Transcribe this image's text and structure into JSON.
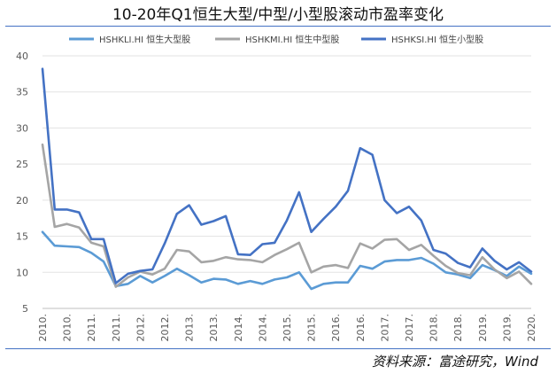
{
  "title": "10-20年Q1恒生大型/中型/小型股滚动市盈率变化",
  "source": "资料来源：富途研究，Wind",
  "chart_data": {
    "type": "line",
    "title": "10-20年Q1恒生大型/中型/小型股滚动市盈率变化",
    "ylim": [
      5,
      40
    ],
    "yticks": [
      5,
      10,
      15,
      20,
      25,
      30,
      35,
      40
    ],
    "grid": true,
    "legend_position": "top",
    "x_tick_labels": [
      "2010.",
      "2010.",
      "2011.",
      "2011.",
      "2012.",
      "2012.",
      "2013.",
      "2013.",
      "2014.",
      "2014.",
      "2015.",
      "2015.",
      "2016.",
      "2016.",
      "2017.",
      "2017.",
      "2018.",
      "2018.",
      "2019.",
      "2019.",
      "2020."
    ],
    "x": [
      "2010Q1",
      "2010Q2",
      "2010Q3",
      "2010Q4",
      "2011Q1",
      "2011Q2",
      "2011Q3",
      "2011Q4",
      "2012Q1",
      "2012Q2",
      "2012Q3",
      "2012Q4",
      "2013Q1",
      "2013Q2",
      "2013Q3",
      "2013Q4",
      "2014Q1",
      "2014Q2",
      "2014Q3",
      "2014Q4",
      "2015Q1",
      "2015Q2",
      "2015Q3",
      "2015Q4",
      "2016Q1",
      "2016Q2",
      "2016Q3",
      "2016Q4",
      "2017Q1",
      "2017Q2",
      "2017Q3",
      "2017Q4",
      "2018Q1",
      "2018Q2",
      "2018Q3",
      "2018Q4",
      "2019Q1",
      "2019Q2",
      "2019Q3",
      "2019Q4",
      "2020Q1"
    ],
    "series": [
      {
        "name": "HSHKLI.HI 恒生大型股",
        "color": "#5b9bd5",
        "values": [
          15.6,
          13.7,
          13.6,
          13.5,
          12.7,
          11.5,
          8.1,
          8.4,
          9.5,
          8.6,
          9.5,
          10.5,
          9.6,
          8.6,
          9.1,
          9.0,
          8.4,
          8.8,
          8.4,
          9.0,
          9.3,
          10.0,
          7.7,
          8.4,
          8.6,
          8.6,
          10.9,
          10.5,
          11.5,
          11.7,
          11.7,
          12.0,
          11.2,
          10.0,
          9.7,
          9.2,
          11.0,
          10.3,
          9.5,
          10.8,
          9.8
        ]
      },
      {
        "name": "HSHKMI.HI 恒生中型股",
        "color": "#a5a5a5",
        "values": [
          27.7,
          16.3,
          16.7,
          16.2,
          14.1,
          13.6,
          8.0,
          9.3,
          10.1,
          9.7,
          10.5,
          13.1,
          12.9,
          11.4,
          11.6,
          12.1,
          11.8,
          11.7,
          11.4,
          12.4,
          13.2,
          14.1,
          10.0,
          10.8,
          11.0,
          10.6,
          14.0,
          13.3,
          14.5,
          14.6,
          13.1,
          13.8,
          12.3,
          10.9,
          9.9,
          9.6,
          12.1,
          10.4,
          9.2,
          10.1,
          8.4
        ]
      },
      {
        "name": "HSHKSI.HI 恒生小型股",
        "color": "#4472c4",
        "values": [
          38.2,
          18.7,
          18.7,
          18.3,
          14.6,
          14.6,
          8.5,
          9.8,
          10.2,
          10.4,
          14.0,
          18.1,
          19.3,
          16.6,
          17.1,
          17.8,
          12.5,
          12.4,
          13.9,
          14.1,
          17.2,
          21.1,
          15.6,
          17.4,
          19.1,
          21.3,
          27.2,
          26.3,
          20.0,
          18.2,
          19.1,
          17.2,
          13.1,
          12.6,
          11.3,
          10.7,
          13.3,
          11.6,
          10.4,
          11.4,
          10.1
        ]
      }
    ]
  }
}
